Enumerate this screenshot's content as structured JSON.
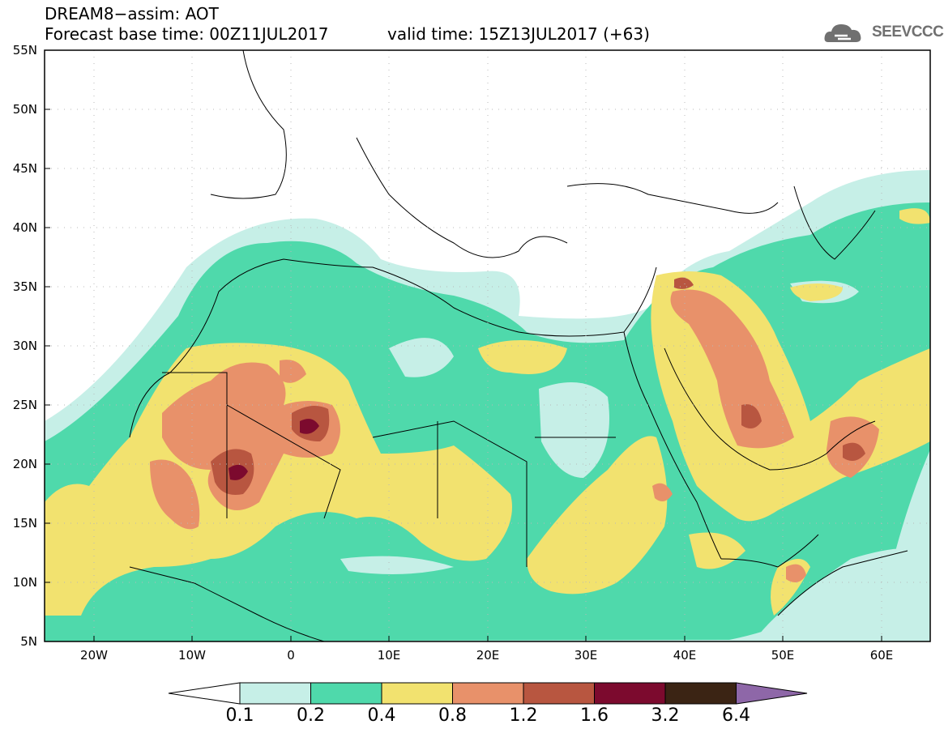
{
  "title": {
    "line1": "DREAM8−assim: AOT",
    "line2": "Forecast base time: 00Z11JUL2017",
    "valid": "valid time: 15Z13JUL2017 (+63)"
  },
  "logo": {
    "text": "SEEVCCC",
    "icon": "cloud-logo-icon"
  },
  "map": {
    "variable": "AOT",
    "lat_range": [
      5,
      55
    ],
    "lon_range": [
      -25,
      65
    ],
    "gridlines": "dotted",
    "lat_labels": [
      "55N",
      "50N",
      "45N",
      "40N",
      "35N",
      "30N",
      "25N",
      "20N",
      "15N",
      "10N",
      "5N"
    ],
    "lon_labels": [
      "20W",
      "10W",
      "0",
      "10E",
      "20E",
      "30E",
      "40E",
      "50E",
      "60E"
    ]
  },
  "colorbar": {
    "levels": [
      "0.1",
      "0.2",
      "0.4",
      "0.8",
      "1.2",
      "1.6",
      "3.2",
      "6.4"
    ],
    "colors": [
      "#c6efe7",
      "#4fd9ab",
      "#f2e26f",
      "#e8916a",
      "#b85640",
      "#7c0a2e",
      "#3b2414"
    ],
    "under_color": "#ffffff",
    "over_color": "#8e67a8"
  }
}
